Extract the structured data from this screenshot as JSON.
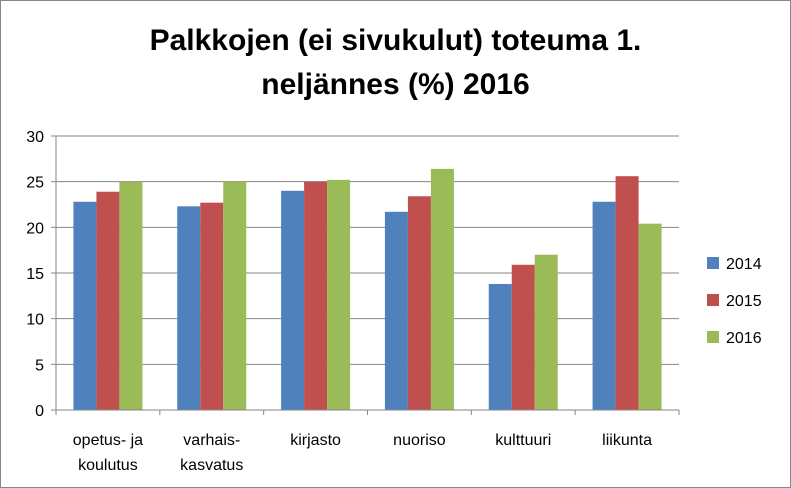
{
  "chart_data": {
    "type": "bar",
    "title_lines": [
      "Palkkojen (ei sivukulut) toteuma 1.",
      "neljännes (%) 2016"
    ],
    "categories": [
      [
        "opetus- ja",
        "koulutus"
      ],
      [
        "varhais-",
        "kasvatus"
      ],
      [
        "kirjasto"
      ],
      [
        "nuoriso"
      ],
      [
        "kulttuuri"
      ],
      [
        "liikunta"
      ]
    ],
    "series": [
      {
        "name": "2014",
        "color": "#4f81bd",
        "values": [
          22.8,
          22.3,
          24.0,
          21.7,
          13.8,
          22.8
        ]
      },
      {
        "name": "2015",
        "color": "#c0504d",
        "values": [
          23.9,
          22.7,
          25.0,
          23.4,
          15.9,
          25.6
        ]
      },
      {
        "name": "2016",
        "color": "#9bbb59",
        "values": [
          25.0,
          25.0,
          25.2,
          26.4,
          17.0,
          20.4
        ]
      }
    ],
    "ylim": [
      0,
      30
    ],
    "yticks": [
      "0",
      "5",
      "10",
      "15",
      "20",
      "25",
      "30"
    ],
    "grid": true,
    "legend_position": "right"
  }
}
